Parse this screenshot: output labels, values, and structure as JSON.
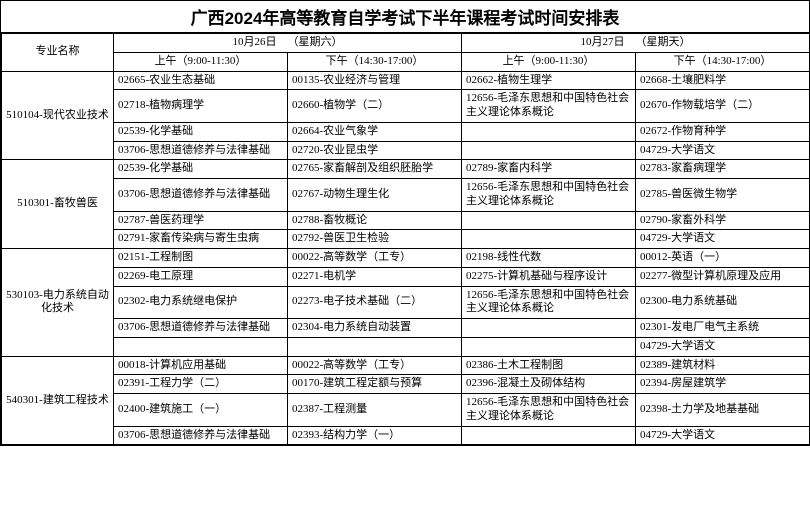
{
  "title": "广西2024年高等教育自学考试下半年课程考试时间安排表",
  "header": {
    "major_label": "专业名称",
    "day1": "10月26日",
    "day1_weekday": "（星期六）",
    "day2": "10月27日",
    "day2_weekday": "（星期天）",
    "am": "上午（9:00-11:30）",
    "pm": "下午（14:30-17:00）"
  },
  "majors": [
    {
      "name": "510104-现代农业技术",
      "rows": [
        {
          "c1": "02665-农业生态基础",
          "c2": "00135-农业经济与管理",
          "c3": "02662-植物生理学",
          "c4": "02668-土壤肥料学"
        },
        {
          "c1": "02718-植物病理学",
          "c2": "02660-植物学（二）",
          "c3": "12656-毛泽东思想和中国特色社会主义理论体系概论",
          "c4": "02670-作物载培学（二）"
        },
        {
          "c1": "02539-化学基础",
          "c2": "02664-农业气象学",
          "c3": "",
          "c4": "02672-作物育种学"
        },
        {
          "c1": "03706-思想道德修养与法律基础",
          "c2": "02720-农业昆虫学",
          "c3": "",
          "c4": "04729-大学语文"
        }
      ]
    },
    {
      "name": "510301-畜牧兽医",
      "rows": [
        {
          "c1": "02539-化学基础",
          "c2": "02765-家畜解剖及组织胚胎学",
          "c3": "02789-家畜内科学",
          "c4": "02783-家畜病理学"
        },
        {
          "c1": "03706-思想道德修养与法律基础",
          "c2": "02767-动物生理生化",
          "c3": "12656-毛泽东思想和中国特色社会主义理论体系概论",
          "c4": "02785-兽医微生物学"
        },
        {
          "c1": "02787-兽医药理学",
          "c2": "02788-畜牧概论",
          "c3": "",
          "c4": "02790-家畜外科学"
        },
        {
          "c1": "02791-家畜传染病与寄生虫病",
          "c2": "02792-兽医卫生检验",
          "c3": "",
          "c4": "04729-大学语文"
        }
      ]
    },
    {
      "name": "530103-电力系统自动化技术",
      "rows": [
        {
          "c1": "02151-工程制图",
          "c2": "00022-高等数学（工专）",
          "c3": "02198-线性代数",
          "c4": "00012-英语（一）"
        },
        {
          "c1": "02269-电工原理",
          "c2": "02271-电机学",
          "c3": "02275-计算机基础与程序设计",
          "c4": "02277-微型计算机原理及应用"
        },
        {
          "c1": "02302-电力系统继电保护",
          "c2": "02273-电子技术基础（二）",
          "c3": "12656-毛泽东思想和中国特色社会主义理论体系概论",
          "c4": "02300-电力系统基础"
        },
        {
          "c1": "03706-思想道德修养与法律基础",
          "c2": "02304-电力系统自动装置",
          "c3": "",
          "c4": "02301-发电厂电气主系统"
        },
        {
          "c1": "",
          "c2": "",
          "c3": "",
          "c4": "04729-大学语文"
        }
      ]
    },
    {
      "name": "540301-建筑工程技术",
      "rows": [
        {
          "c1": "00018-计算机应用基础",
          "c2": "00022-高等数学（工专）",
          "c3": "02386-土木工程制图",
          "c4": "02389-建筑材料"
        },
        {
          "c1": "02391-工程力学（二）",
          "c2": "00170-建筑工程定额与预算",
          "c3": "02396-混凝土及砌体结构",
          "c4": "02394-房屋建筑学"
        },
        {
          "c1": "02400-建筑施工（一）",
          "c2": "02387-工程测量",
          "c3": "12656-毛泽东思想和中国特色社会主义理论体系概论",
          "c4": "02398-土力学及地基基础"
        },
        {
          "c1": "03706-思想道德修养与法律基础",
          "c2": "02393-结构力学（一）",
          "c3": "",
          "c4": "04729-大学语文"
        }
      ]
    }
  ],
  "styles": {
    "border_color": "#000000",
    "background_color": "#ffffff",
    "title_fontsize": 17,
    "body_fontsize": 11
  }
}
